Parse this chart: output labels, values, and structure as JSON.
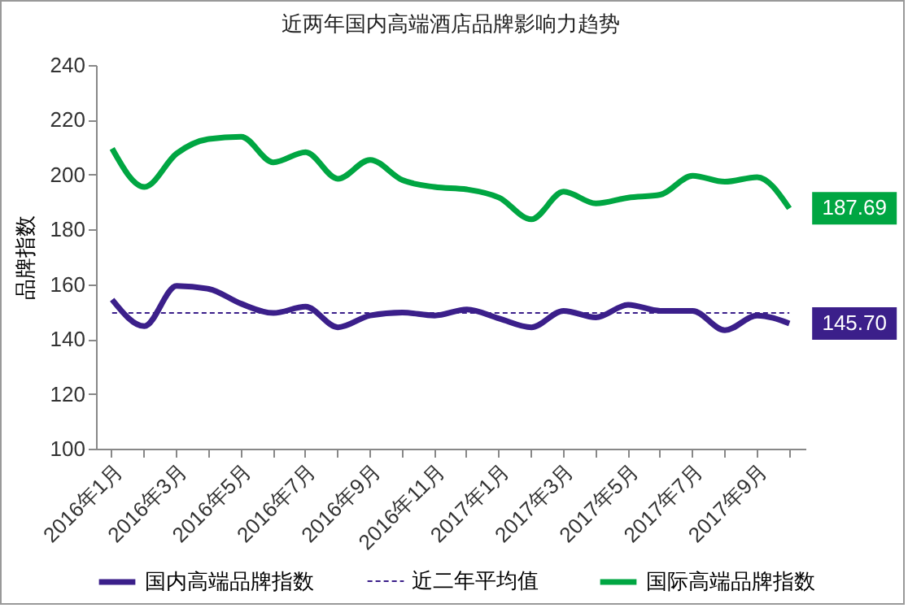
{
  "chart_data": {
    "type": "line",
    "title": "近两年国内高端酒店品牌影响力趋势",
    "ylabel": "品牌指数",
    "categories": [
      "2016年1月",
      null,
      "2016年3月",
      null,
      "2016年5月",
      null,
      "2016年7月",
      null,
      "2016年9月",
      null,
      "2016年11月",
      null,
      "2017年1月",
      null,
      "2017年3月",
      null,
      "2017年5月",
      null,
      "2017年7月",
      null,
      "2017年9月",
      null
    ],
    "series": [
      {
        "name": "国内高端品牌指数",
        "color": "#3b1f8a",
        "values": [
          154.4,
          144.7,
          159.4,
          158.3,
          152.9,
          149.5,
          151.8,
          144.3,
          148.6,
          149.7,
          148.6,
          150.8,
          147.5,
          144.3,
          150.3,
          147.9,
          152.5,
          150.3,
          150.3,
          143.2,
          148.6,
          145.7
        ],
        "value_labels": [
          null,
          null,
          null,
          null,
          null,
          null,
          null,
          null,
          null,
          null,
          null,
          null,
          null,
          null,
          null,
          null,
          null,
          null,
          null,
          null,
          null,
          "145.70"
        ]
      },
      {
        "name": "近二年平均值",
        "color": "#3b1f8a",
        "line_style": "dashed",
        "values": [
          149.5,
          149.5,
          149.5,
          149.5,
          149.5,
          149.5,
          149.5,
          149.5,
          149.5,
          149.5,
          149.5,
          149.5,
          149.5,
          149.5,
          149.5,
          149.5,
          149.5,
          149.5,
          149.5,
          149.5,
          149.5,
          149.5
        ]
      },
      {
        "name": "国际高端品牌指数",
        "color": "#00a642",
        "values": [
          209.5,
          195.5,
          207.7,
          213.0,
          213.8,
          204.5,
          208.2,
          198.5,
          205.4,
          198.0,
          195.5,
          194.6,
          191.6,
          183.7,
          193.8,
          189.5,
          191.6,
          192.7,
          199.6,
          197.4,
          199.1,
          187.69
        ],
        "value_labels": [
          null,
          null,
          null,
          null,
          null,
          null,
          null,
          null,
          null,
          null,
          null,
          null,
          null,
          null,
          null,
          null,
          null,
          null,
          null,
          null,
          null,
          "187.69"
        ]
      }
    ],
    "ylim": [
      100,
      240
    ],
    "yticks": [
      100,
      120,
      140,
      160,
      180,
      200,
      220,
      240
    ],
    "grid": false,
    "legend": "bottom",
    "marker": "none"
  }
}
